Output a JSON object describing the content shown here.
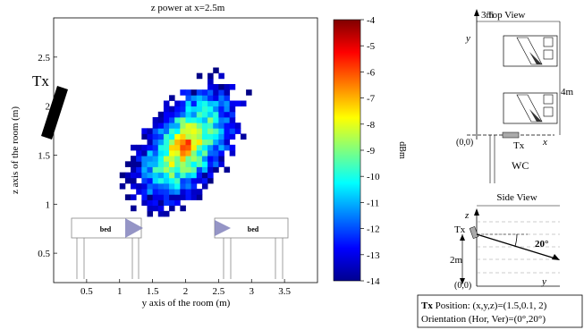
{
  "chart_data": {
    "type": "heatmap",
    "title": "z power at x=2.5m",
    "xlabel": "y axis of the room (m)",
    "ylabel": "z axis of the room (m)",
    "xlim": [
      0,
      4.0
    ],
    "ylim": [
      0.2,
      2.9
    ],
    "xticks": [
      "0.5",
      "1",
      "1.5",
      "2",
      "2.5",
      "3",
      "3.5"
    ],
    "xtick_values": [
      0.5,
      1,
      1.5,
      2,
      2.5,
      3,
      3.5
    ],
    "yticks": [
      "0.5",
      "1",
      "1.5",
      "2",
      "2.5"
    ],
    "ytick_values": [
      0.5,
      1,
      1.5,
      2,
      2.5
    ],
    "colorbar": {
      "label": "dBm",
      "ticks": [
        "-4",
        "-5",
        "-6",
        "-7",
        "-8",
        "-9",
        "-10",
        "-11",
        "-12",
        "-13",
        "-14"
      ],
      "tick_values": [
        -4,
        -5,
        -6,
        -7,
        -8,
        -9,
        -10,
        -11,
        -12,
        -13,
        -14
      ],
      "range": [
        -14,
        -4
      ],
      "colormap": "jet"
    },
    "peak": {
      "y": 2.0,
      "z": 1.6,
      "value_dbm": -6.5
    },
    "annotations": {
      "tx_label": "Tx",
      "bed_labels": [
        "bed",
        "bed"
      ]
    }
  },
  "top_view": {
    "title": "Top View",
    "width_label": "3m",
    "length_label": "4m",
    "origin_label": "(0,0)",
    "tx_label": "Tx",
    "wc_label": "WC",
    "x_axis_label": "x",
    "y_axis_label": "y"
  },
  "side_view": {
    "title": "Side View",
    "z_axis_label": "z",
    "y_axis_label": "y",
    "tx_label": "Tx",
    "height_label": "2m",
    "angle_label": "20°",
    "origin_label": "(0,0)"
  },
  "info_box": {
    "line1_bold": "Tx",
    "line1_rest": " Position: (x,y,z)=(1.5,0.1, 2)",
    "line2": "Orientation (Hor, Ver)=(0°,20°)"
  },
  "colors": {
    "jet_low": "#00008f",
    "jet_high": "#800000",
    "tx_bar": "#000000",
    "bed": "#ffffff"
  }
}
